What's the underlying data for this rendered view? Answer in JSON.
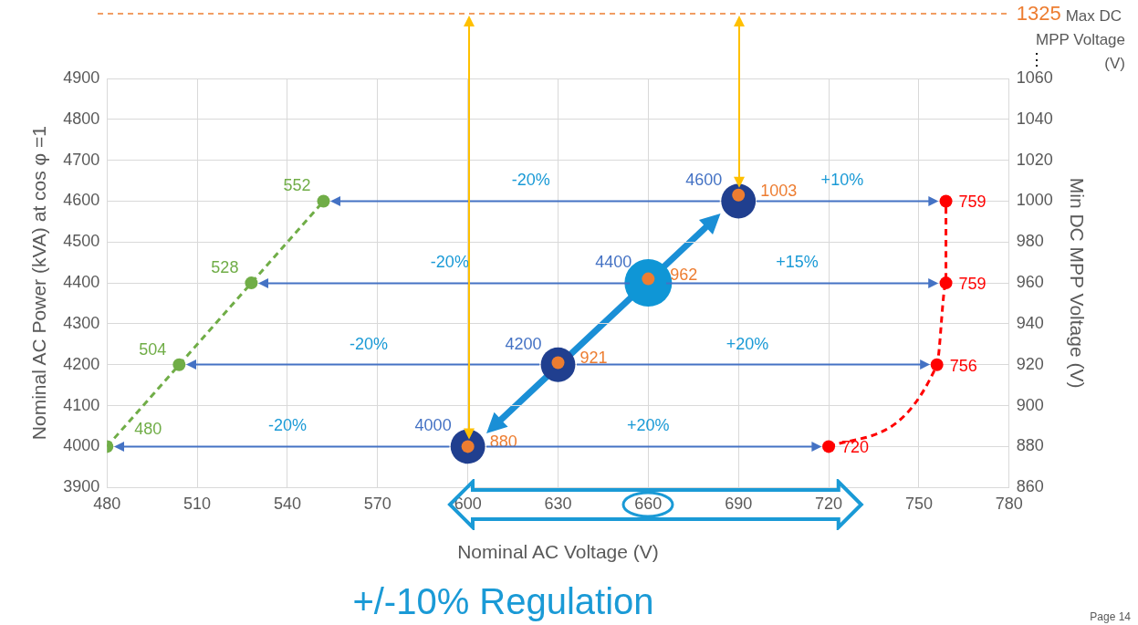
{
  "chart_data": {
    "type": "scatter",
    "xlabel": "Nominal AC Voltage (V)",
    "ylabel": "Nominal AC Power (kVA) at cos φ =1",
    "y2label": "Min DC MPP Voltage (V)",
    "xlim": [
      480,
      780
    ],
    "xticks": [
      480,
      510,
      540,
      570,
      600,
      630,
      660,
      690,
      720,
      750,
      780
    ],
    "ylim": [
      3900,
      4900
    ],
    "yticks": [
      3900,
      4000,
      4100,
      4200,
      4300,
      4400,
      4500,
      4600,
      4700,
      4800,
      4900
    ],
    "y2lim": [
      860,
      1060
    ],
    "y2ticks": [
      860,
      880,
      900,
      920,
      940,
      960,
      980,
      1000,
      1020,
      1040,
      1060
    ],
    "grid": true,
    "legend": false,
    "series": [
      {
        "type": "line",
        "color": "#70ad47",
        "x": [
          480,
          504,
          528,
          552
        ],
        "values": [
          4000,
          4200,
          4400,
          4600
        ],
        "marker": "circle",
        "line_style": "dashed"
      },
      {
        "type": "line",
        "color": "#ff0000",
        "x": [
          720,
          756,
          759,
          759
        ],
        "values": [
          4000,
          4200,
          4400,
          4600
        ],
        "marker": "circle",
        "line_style": "dashed"
      },
      {
        "type": "bubble",
        "color": "#203f8f",
        "colors": [
          "#203f8f",
          "#203f8f",
          "#0f96d6",
          "#203f8f"
        ],
        "x": [
          600,
          630,
          660,
          690
        ],
        "values": [
          4000,
          4200,
          4400,
          4600
        ],
        "sizes": [
          0.53,
          0.53,
          1,
          0.53
        ],
        "value_labels": [
          "4000",
          "4200",
          "4400",
          "4600"
        ]
      },
      {
        "type": "scatter",
        "axis": "y2",
        "color": "#ed7d31",
        "x": [
          600,
          630,
          660,
          690
        ],
        "values": [
          880,
          921,
          962,
          1003
        ],
        "value_labels": [
          "880",
          "921",
          "962",
          "1003"
        ],
        "marker": "circle"
      }
    ],
    "annotations": [
      "1325",
      "Max DC MPP Voltage (V)",
      "⋮",
      "+/-10% Regulation",
      "Page 14",
      "-20%",
      "+10%",
      "-20%",
      "+15%",
      "-20%",
      "+20%",
      "-20%",
      "+20%",
      {
        "text": "480",
        "x": 480,
        "y": 4000
      },
      {
        "text": "504",
        "x": 504,
        "y": 4200
      },
      {
        "text": "528",
        "x": 528,
        "y": 4400
      },
      {
        "text": "552",
        "x": 552,
        "y": 4600
      },
      {
        "text": "720",
        "x": 720,
        "y": 4000
      },
      {
        "text": "756",
        "x": 756,
        "y": 4200
      },
      {
        "text": "759",
        "x": 759,
        "y": 4400
      },
      {
        "text": "759",
        "x": 759,
        "y": 4600
      }
    ]
  }
}
